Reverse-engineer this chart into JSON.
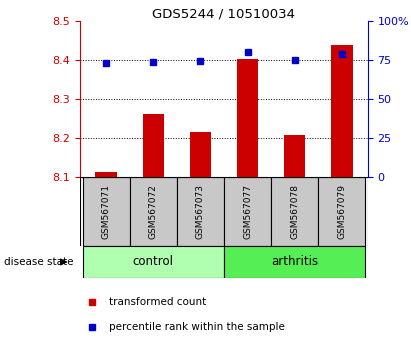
{
  "title": "GDS5244 / 10510034",
  "categories": [
    "GSM567071",
    "GSM567072",
    "GSM567073",
    "GSM567077",
    "GSM567078",
    "GSM567079"
  ],
  "red_values": [
    8.112,
    8.262,
    8.215,
    8.402,
    8.208,
    8.438
  ],
  "blue_values": [
    73.0,
    74.0,
    74.5,
    80.5,
    75.0,
    79.0
  ],
  "ylim_left": [
    8.1,
    8.5
  ],
  "ylim_right": [
    0,
    100
  ],
  "yticks_left": [
    8.1,
    8.2,
    8.3,
    8.4,
    8.5
  ],
  "yticks_right": [
    0,
    25,
    50,
    75,
    100
  ],
  "ytick_labels_right": [
    "0",
    "25",
    "50",
    "75",
    "100%"
  ],
  "groups": [
    {
      "label": "control",
      "indices": [
        0,
        1,
        2
      ],
      "color": "#b0ffb0"
    },
    {
      "label": "arthritis",
      "indices": [
        3,
        4,
        5
      ],
      "color": "#55ee55"
    }
  ],
  "disease_state_label": "disease state",
  "red_color": "#cc0000",
  "blue_color": "#0000cc",
  "bar_bottom": 8.1,
  "label_box_color": "#c8c8c8",
  "legend_red_label": "transformed count",
  "legend_blue_label": "percentile rank within the sample"
}
